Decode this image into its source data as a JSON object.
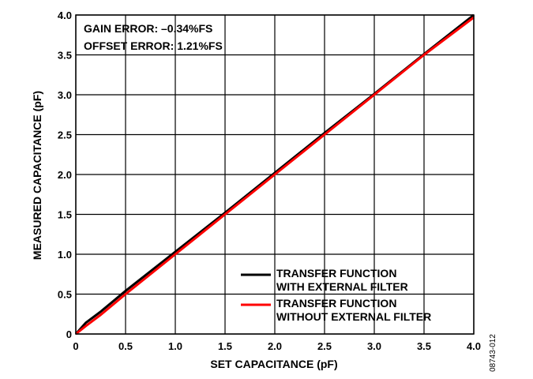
{
  "chart_data": {
    "type": "line",
    "xlabel": "SET CAPACITANCE (pF)",
    "ylabel": "MEASURED CAPACITANCE (pF)",
    "xlim": [
      0,
      4.0
    ],
    "ylim": [
      0,
      4.0
    ],
    "xticks": [
      "0",
      "0.5",
      "1.0",
      "1.5",
      "2.0",
      "2.5",
      "3.0",
      "3.5",
      "4.0"
    ],
    "yticks": [
      "0",
      "0.5",
      "1.0",
      "1.5",
      "2.0",
      "2.5",
      "3.0",
      "3.5",
      "4.0"
    ],
    "grid": true,
    "annotations": [
      "GAIN ERROR: –0.34%FS",
      "OFFSET ERROR: 1.21%FS"
    ],
    "legend": {
      "position": "bottom-right",
      "entries": [
        {
          "line1": "TRANSFER FUNCTION",
          "line2": "WITH EXTERNAL FILTER",
          "color": "#000000"
        },
        {
          "line1": "TRANSFER FUNCTION",
          "line2": "WITHOUT EXTERNAL FILTER",
          "color": "#ff0000"
        }
      ]
    },
    "series": [
      {
        "color": "#000000",
        "x": [
          0,
          0.1,
          0.25,
          0.5,
          1.0,
          1.5,
          2.0,
          2.5,
          3.0,
          3.5,
          4.0
        ],
        "y": [
          0,
          0.14,
          0.28,
          0.54,
          1.03,
          1.52,
          2.02,
          2.52,
          3.01,
          3.51,
          4.0
        ]
      },
      {
        "color": "#ff0000",
        "x": [
          0,
          0.1,
          0.25,
          0.5,
          1.0,
          1.5,
          2.0,
          2.5,
          3.0,
          3.5,
          4.0
        ],
        "y": [
          0,
          0.1,
          0.24,
          0.5,
          1.0,
          1.5,
          2.0,
          2.5,
          3.0,
          3.5,
          3.97
        ]
      }
    ]
  },
  "figure_id": "08743-012"
}
